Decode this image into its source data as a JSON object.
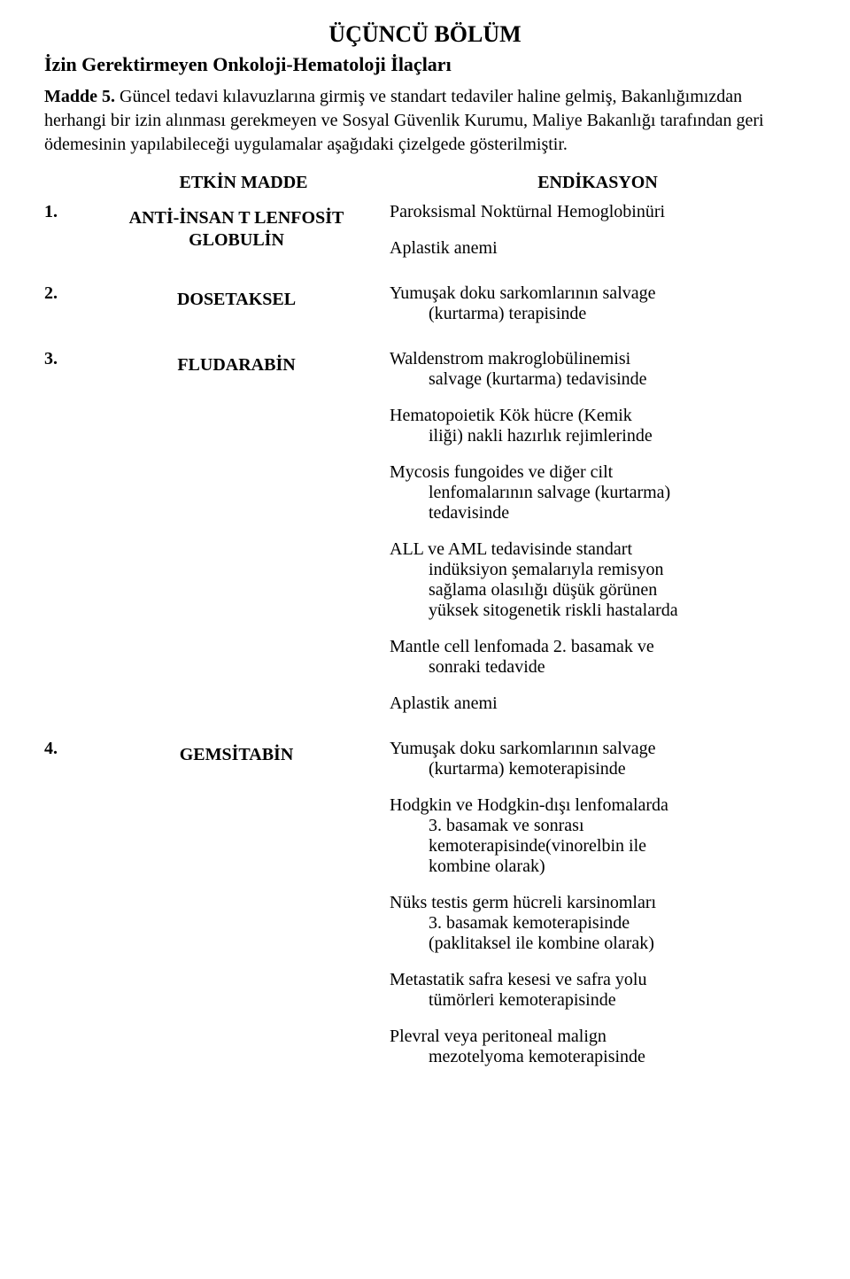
{
  "chapter_title": "ÜÇÜNCÜ BÖLÜM",
  "section_heading": "İzin Gerektirmeyen Onkoloji-Hematoloji İlaçları",
  "madde_label": "Madde 5.",
  "intro_text": "Güncel tedavi kılavuzlarına girmiş ve standart tedaviler haline gelmiş, Bakanlığımızdan herhangi bir izin alınması gerekmeyen ve Sosyal Güvenlik Kurumu, Maliye Bakanlığı tarafından geri ödemesinin yapılabileceği uygulamalar aşağıdaki çizelgede gösterilmiştir.",
  "headers": {
    "etkin": "ETKİN MADDE",
    "endik": "ENDİKASYON"
  },
  "rows": [
    {
      "num": "1.",
      "etkin_lines": [
        "ANTİ-İNSAN T LENFOSİT",
        "GLOBULİN"
      ],
      "indications": [
        {
          "lines": [
            "Paroksismal Noktürnal Hemoglobinüri"
          ]
        },
        {
          "lines": [
            "Aplastik anemi"
          ]
        }
      ]
    },
    {
      "num": "2.",
      "etkin_lines": [
        "DOSETAKSEL"
      ],
      "indications": [
        {
          "lines": [
            "Yumuşak doku sarkomlarının salvage",
            "(kurtarma) terapisinde"
          ]
        }
      ]
    },
    {
      "num": "3.",
      "etkin_lines": [
        "FLUDARABİN"
      ],
      "indications": [
        {
          "lines": [
            "Waldenstrom makroglobülinemisi",
            "salvage (kurtarma) tedavisinde"
          ]
        },
        {
          "lines": [
            "Hematopoietik Kök hücre (Kemik",
            "iliği) nakli hazırlık rejimlerinde"
          ]
        },
        {
          "lines": [
            "Mycosis fungoides ve diğer cilt",
            "lenfomalarının salvage (kurtarma)",
            "tedavisinde"
          ]
        },
        {
          "lines": [
            "ALL ve AML tedavisinde standart",
            "indüksiyon şemalarıyla remisyon",
            "sağlama olasılığı düşük görünen",
            "yüksek sitogenetik riskli hastalarda"
          ]
        },
        {
          "lines": [
            "Mantle cell lenfomada 2. basamak ve",
            "sonraki tedavide"
          ]
        },
        {
          "lines": [
            "Aplastik anemi"
          ]
        }
      ]
    },
    {
      "num": "4.",
      "etkin_lines": [
        "GEMSİTABİN"
      ],
      "indications": [
        {
          "lines": [
            "Yumuşak doku sarkomlarının salvage",
            "(kurtarma) kemoterapisinde"
          ]
        },
        {
          "lines": [
            "Hodgkin ve Hodgkin-dışı lenfomalarda",
            "3. basamak ve sonrası",
            "kemoterapisinde(vinorelbin ile",
            "kombine olarak)"
          ]
        },
        {
          "lines": [
            "Nüks testis germ hücreli karsinomları",
            "3. basamak kemoterapisinde",
            "(paklitaksel ile kombine olarak)"
          ]
        },
        {
          "lines": [
            "Metastatik safra kesesi ve safra yolu",
            "tümörleri kemoterapisinde"
          ]
        },
        {
          "lines": [
            "Plevral veya peritoneal malign",
            "mezotelyoma kemoterapisinde"
          ]
        }
      ]
    }
  ]
}
